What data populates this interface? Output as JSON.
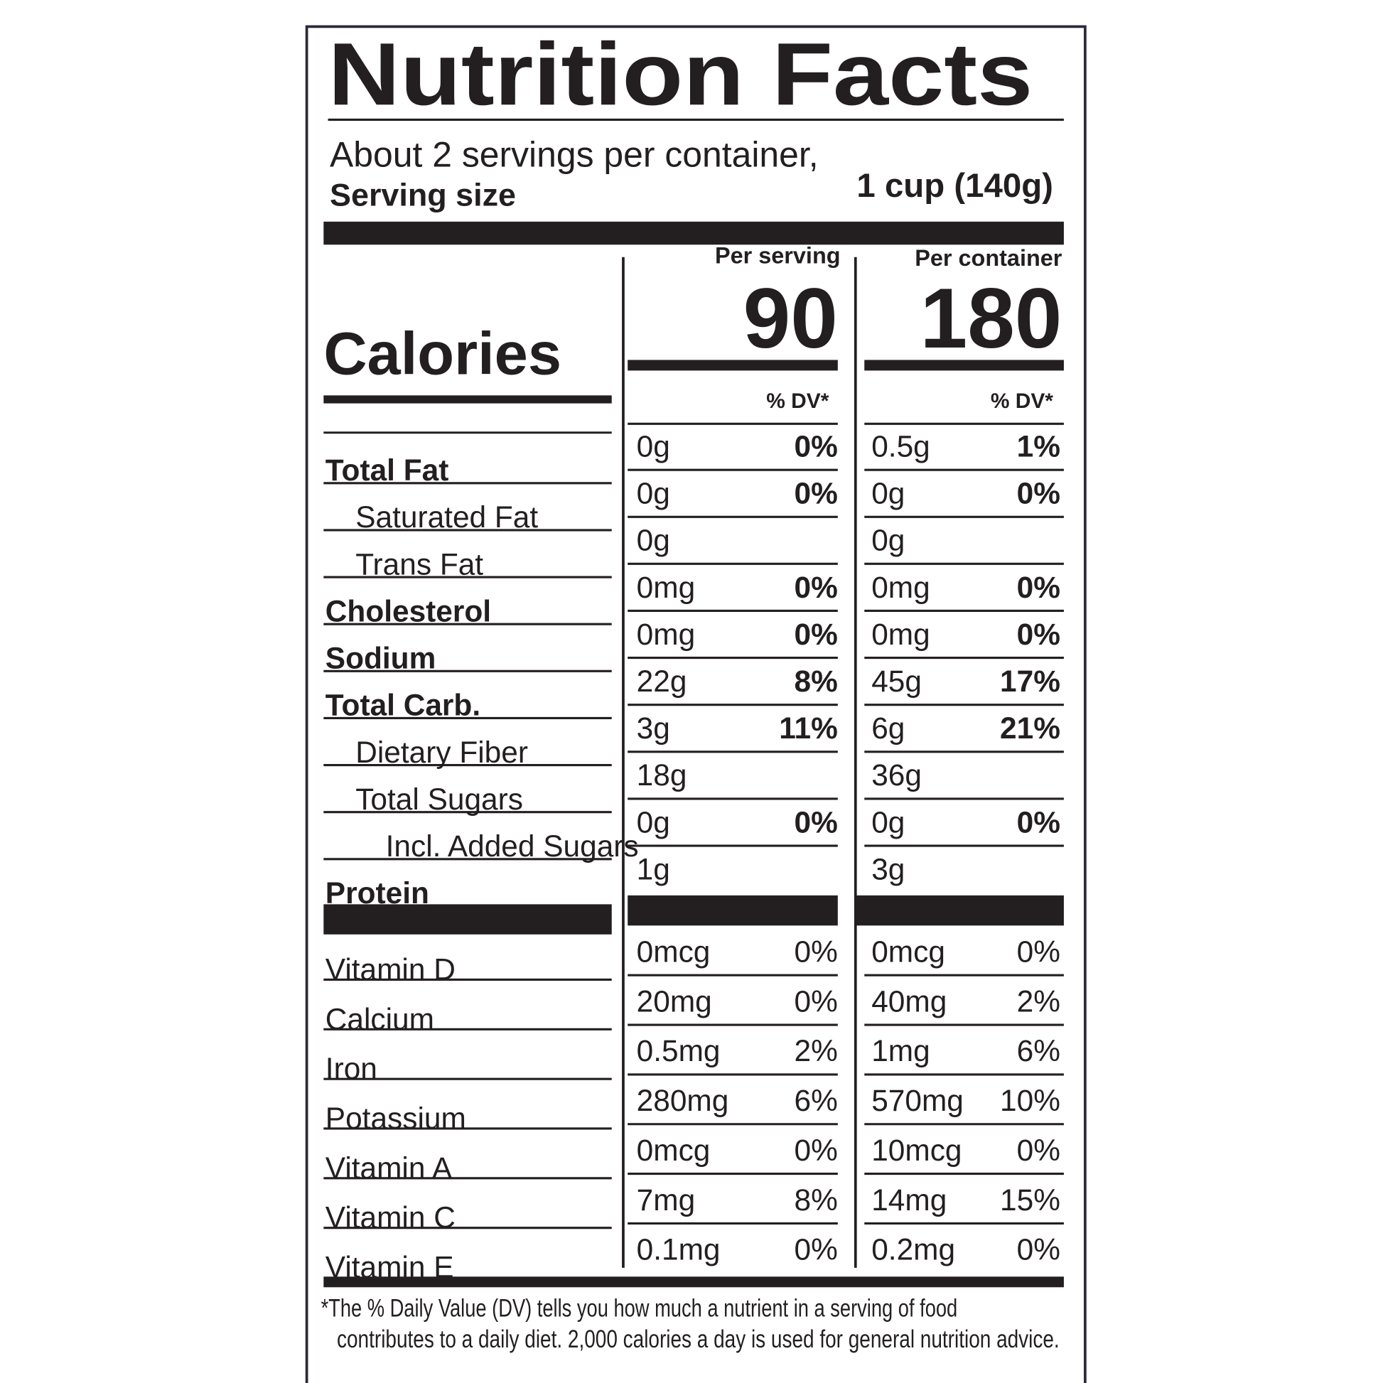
{
  "title": "Nutrition Facts",
  "servings": "About 2 servings per container,",
  "serving_size": {
    "label": "Serving size",
    "value": "1 cup (140g)"
  },
  "columns": {
    "per_serving": "Per serving",
    "per_container": "Per container"
  },
  "calories": {
    "label": "Calories",
    "per_serving": "90",
    "per_container": "180"
  },
  "dv_header": {
    "per_serving": "% DV*",
    "per_container": "% DV*"
  },
  "nutrients": [
    {
      "name": "Total Fat",
      "serving": "0g",
      "serving_dv": "0%",
      "container": "0.5g",
      "container_dv": "1%"
    },
    {
      "name": "Saturated Fat",
      "serving": "0g",
      "serving_dv": "0%",
      "container": "0g",
      "container_dv": "0%"
    },
    {
      "name": "Trans Fat",
      "serving": "0g",
      "container": "0g"
    },
    {
      "name": "Cholesterol",
      "serving": "0mg",
      "serving_dv": "0%",
      "container": "0mg",
      "container_dv": "0%"
    },
    {
      "name": "Sodium",
      "serving": "0mg",
      "serving_dv": "0%",
      "container": "0mg",
      "container_dv": "0%"
    },
    {
      "name": "Total Carb.",
      "serving": "22g",
      "serving_dv": "8%",
      "container": "45g",
      "container_dv": "17%"
    },
    {
      "name": "Dietary Fiber",
      "serving": "3g",
      "serving_dv": "11%",
      "container": "6g",
      "container_dv": "21%"
    },
    {
      "name": "Total Sugars",
      "serving": "18g",
      "container": "36g"
    },
    {
      "name": "Incl. Added Sugars",
      "serving": "0g",
      "serving_dv": "0%",
      "container": "0g",
      "container_dv": "0%"
    },
    {
      "name": "Protein",
      "serving": "1g",
      "container": "3g"
    }
  ],
  "vitamins": [
    {
      "name": "Vitamin D",
      "serving": "0mcg",
      "serving_dv": "0%",
      "container": "0mcg",
      "container_dv": "0%"
    },
    {
      "name": "Calcium",
      "serving": "20mg",
      "serving_dv": "0%",
      "container": "40mg",
      "container_dv": "2%"
    },
    {
      "name": "Iron",
      "serving": "0.5mg",
      "serving_dv": "2%",
      "container": "1mg",
      "container_dv": "6%"
    },
    {
      "name": "Potassium",
      "serving": "280mg",
      "serving_dv": "6%",
      "container": "570mg",
      "container_dv": "10%"
    },
    {
      "name": "Vitamin A",
      "serving": "0mcg",
      "serving_dv": "0%",
      "container": "10mcg",
      "container_dv": "0%"
    },
    {
      "name": "Vitamin C",
      "serving": "7mg",
      "serving_dv": "8%",
      "container": "14mg",
      "container_dv": "15%"
    },
    {
      "name": "Vitamin E",
      "serving": "0.1mg",
      "serving_dv": "0%",
      "container": "0.2mg",
      "container_dv": "0%"
    }
  ],
  "footnote": [
    "*The % Daily Value (DV) tells you how much a nutrient in a serving of food",
    "contributes to a daily diet. 2,000 calories a day is used for general nutrition advice."
  ]
}
